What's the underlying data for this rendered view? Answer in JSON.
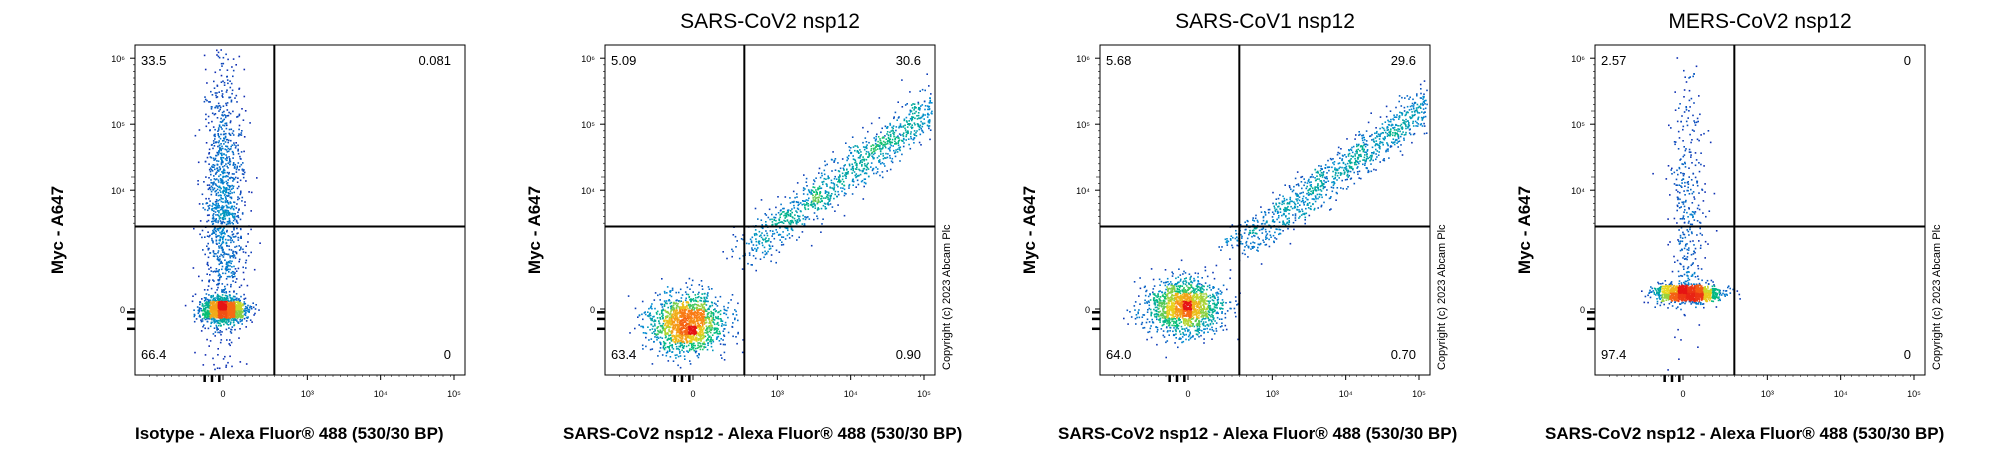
{
  "copyright": "Copyright (c) 2023 Abcam Plc",
  "chart_data": [
    {
      "type": "scatter",
      "title": "",
      "xlabel": "Isotype - Alexa Fluor® 488 (530/30 BP)",
      "ylabel": "Myc - A647",
      "xticks": [
        "0",
        "10³",
        "10⁴",
        "10⁵"
      ],
      "yticks": [
        "0",
        "10⁴",
        "10⁵",
        "10⁶"
      ],
      "quadrants": {
        "upper_left": "33.5",
        "upper_right": "0.081",
        "lower_left": "66.4",
        "lower_right": "0"
      },
      "show_copyright": false,
      "clusters": [
        {
          "x": 0,
          "y": 0,
          "sx": 0.15,
          "sy": 0.09,
          "n": 1400
        },
        {
          "x": 0,
          "y": 1.6,
          "sx": 0.14,
          "sy": 1.0,
          "n": 1200
        }
      ]
    },
    {
      "type": "scatter",
      "title": "SARS-CoV2 nsp12",
      "xlabel": "SARS-CoV2 nsp12 - Alexa Fluor® 488 (530/30 BP)",
      "ylabel": "Myc - A647",
      "xticks": [
        "0",
        "10³",
        "10⁴",
        "10⁵"
      ],
      "yticks": [
        "0",
        "10⁴",
        "10⁵",
        "10⁶"
      ],
      "quadrants": {
        "upper_left": "5.09",
        "upper_right": "30.6",
        "lower_left": "63.4",
        "lower_right": "0.90"
      },
      "show_copyright": true,
      "clusters": [
        {
          "x": -0.1,
          "y": -0.2,
          "sx": 0.25,
          "sy": 0.22,
          "n": 1500
        },
        {
          "diag": true,
          "x0": 0.6,
          "y0": 0.8,
          "x1": 3.9,
          "y1": 3.6,
          "w": 0.14,
          "n": 1400
        }
      ]
    },
    {
      "type": "scatter",
      "title": "SARS-CoV1 nsp12",
      "xlabel": "SARS-CoV2 nsp12 - Alexa Fluor® 488 (530/30 BP)",
      "ylabel": "Myc - A647",
      "xticks": [
        "0",
        "10³",
        "10⁴",
        "10⁵"
      ],
      "yticks": [
        "0",
        "10⁴",
        "10⁵",
        "10⁶"
      ],
      "quadrants": {
        "upper_left": "5.68",
        "upper_right": "29.6",
        "lower_left": "64.0",
        "lower_right": "0.70"
      },
      "show_copyright": true,
      "clusters": [
        {
          "x": -0.05,
          "y": 0.05,
          "sx": 0.26,
          "sy": 0.2,
          "n": 1500
        },
        {
          "diag": true,
          "x0": 0.6,
          "y0": 0.9,
          "x1": 4.0,
          "y1": 3.7,
          "w": 0.14,
          "n": 1400
        }
      ]
    },
    {
      "type": "scatter",
      "title": "MERS-CoV2 nsp12",
      "xlabel": "SARS-CoV2 nsp12 - Alexa Fluor® 488 (530/30 BP)",
      "ylabel": "Myc - A647",
      "xticks": [
        "0",
        "10³",
        "10⁴",
        "10⁵"
      ],
      "yticks": [
        "0",
        "10⁴",
        "10⁵",
        "10⁶"
      ],
      "quadrants": {
        "upper_left": "2.57",
        "upper_right": "0",
        "lower_left": "97.4",
        "lower_right": "0"
      },
      "show_copyright": true,
      "clusters": [
        {
          "x": 0.05,
          "y": 0.25,
          "sx": 0.22,
          "sy": 0.07,
          "n": 1300
        },
        {
          "x": 0.05,
          "y": 1.6,
          "sx": 0.12,
          "sy": 0.9,
          "n": 350
        }
      ]
    }
  ]
}
